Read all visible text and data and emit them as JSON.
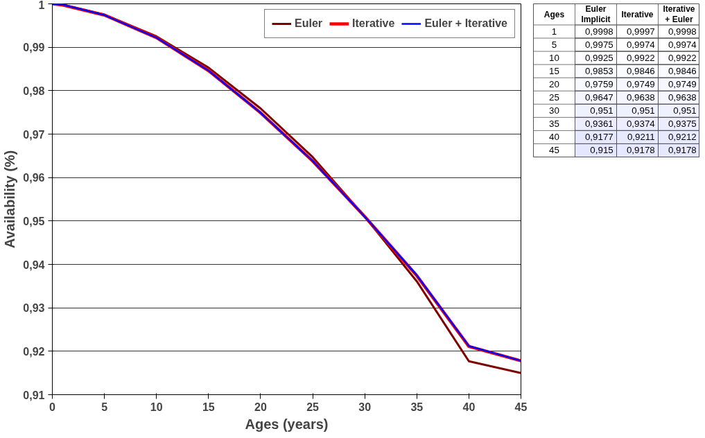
{
  "chart_data": [
    {
      "type": "line",
      "xlabel": "Ages (years)",
      "ylabel": "Availability (%)",
      "x": [
        0,
        1,
        5,
        10,
        15,
        20,
        25,
        30,
        35,
        40,
        45
      ],
      "series": [
        {
          "name": "Euler",
          "color": "#800000",
          "values": [
            1,
            0.9998,
            0.9975,
            0.9925,
            0.9853,
            0.9759,
            0.9647,
            0.951,
            0.9361,
            0.9177,
            0.915
          ]
        },
        {
          "name": "Iterative",
          "color": "#ff0000",
          "values": [
            1,
            0.9997,
            0.9974,
            0.9922,
            0.9846,
            0.9749,
            0.9638,
            0.951,
            0.9374,
            0.9211,
            0.9178
          ]
        },
        {
          "name": "Euler + Iterative",
          "color": "#0000ff",
          "values": [
            1,
            0.9998,
            0.9974,
            0.9922,
            0.9846,
            0.9749,
            0.9638,
            0.951,
            0.9375,
            0.9212,
            0.9178
          ]
        }
      ],
      "xlim": [
        0,
        45
      ],
      "xticks": [
        0,
        5,
        10,
        15,
        20,
        25,
        30,
        35,
        40,
        45
      ],
      "ylim": [
        0.91,
        1
      ],
      "yticks": [
        {
          "value": 0.91,
          "label": "0,91"
        },
        {
          "value": 0.92,
          "label": "0,92"
        },
        {
          "value": 0.93,
          "label": "0,93"
        },
        {
          "value": 0.94,
          "label": "0,94"
        },
        {
          "value": 0.95,
          "label": "0,95"
        },
        {
          "value": 0.96,
          "label": "0,96"
        },
        {
          "value": 0.97,
          "label": "0,97"
        },
        {
          "value": 0.98,
          "label": "0,98"
        },
        {
          "value": 0.99,
          "label": "0,99"
        },
        1
      ],
      "grid": "y",
      "legend": "top",
      "marker": "none",
      "line_style": "solid"
    },
    {
      "type": "heatmap",
      "ylabel": "Ages",
      "categories": [
        "Euler Implicit",
        "Iterative",
        "Iterative + Euler"
      ],
      "y_categories": [
        "1",
        "5",
        "10",
        "15",
        "20",
        "25",
        "30",
        "35",
        "40",
        "45"
      ],
      "cells": [
        [
          0.9998,
          0.9997,
          0.9998
        ],
        [
          0.9975,
          0.9974,
          0.9974
        ],
        [
          0.9925,
          0.9922,
          0.9922
        ],
        [
          0.9853,
          0.9846,
          0.9846
        ],
        [
          0.9759,
          0.9749,
          0.9749
        ],
        [
          0.9647,
          0.9638,
          0.9638
        ],
        [
          0.951,
          0.951,
          0.951
        ],
        [
          0.9361,
          0.9374,
          0.9375
        ],
        [
          0.9177,
          0.9211,
          0.9212
        ],
        [
          0.915,
          0.9178,
          0.9178
        ]
      ],
      "cell_labels": [
        [
          "0,9998",
          "0,9997",
          "0,9998"
        ],
        [
          "0,9975",
          "0,9974",
          "0,9974"
        ],
        [
          "0,9925",
          "0,9922",
          "0,9922"
        ],
        [
          "0,9853",
          "0,9846",
          "0,9846"
        ],
        [
          "0,9759",
          "0,9749",
          "0,9749"
        ],
        [
          "0,9647",
          "0,9638",
          "0,9638"
        ],
        [
          "0,951",
          "0,951",
          "0,951"
        ],
        [
          "0,9361",
          "0,9374",
          "0,9375"
        ],
        [
          "0,9177",
          "0,9211",
          "0,9212"
        ],
        [
          "0,915",
          "0,9178",
          "0,9178"
        ]
      ]
    }
  ]
}
